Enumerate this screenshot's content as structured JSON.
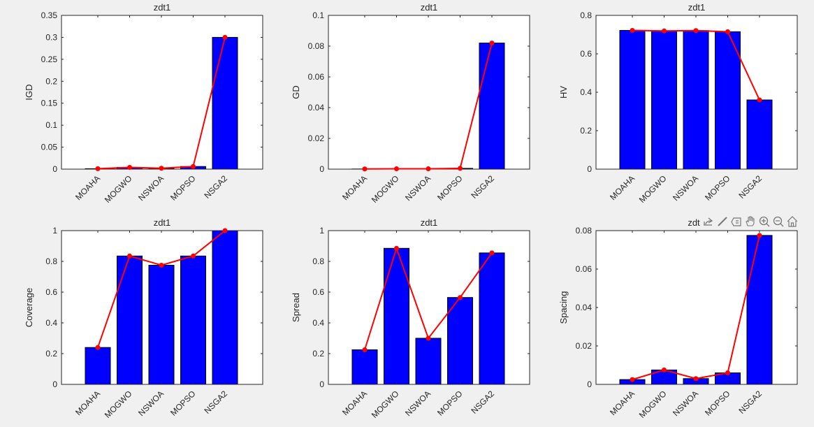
{
  "colors": {
    "bar": "#0000ff",
    "line": "#ff0000",
    "background": "#f0f0f0"
  },
  "toolbar": {
    "icons": [
      "export-icon",
      "brush-icon",
      "data-tips-icon",
      "pan-icon",
      "zoom-in-icon",
      "zoom-out-icon",
      "home-icon"
    ]
  },
  "chart_data": [
    {
      "type": "bar",
      "title": "zdt1",
      "ylabel": "IGD",
      "categories": [
        "MOAHA",
        "MOGWO",
        "NSWOA",
        "MOPSO",
        "NSGA2"
      ],
      "values": [
        0.001,
        0.004,
        0.002,
        0.006,
        0.3
      ],
      "ylim": [
        0,
        0.35
      ],
      "yticks": [
        "0",
        "0.05",
        "0.1",
        "0.15",
        "0.2",
        "0.25",
        "0.3",
        "0.35"
      ],
      "overlay": "line"
    },
    {
      "type": "bar",
      "title": "zdt1",
      "ylabel": "GD",
      "categories": [
        "MOAHA",
        "MOGWO",
        "NSWOA",
        "MOPSO",
        "NSGA2"
      ],
      "values": [
        0.0001,
        0.0002,
        0.0002,
        0.0005,
        0.082
      ],
      "ylim": [
        0,
        0.1
      ],
      "yticks": [
        "0",
        "0.02",
        "0.04",
        "0.06",
        "0.08",
        "0.1"
      ],
      "overlay": "line"
    },
    {
      "type": "bar",
      "title": "zdt1",
      "ylabel": "HV",
      "categories": [
        "MOAHA",
        "MOGWO",
        "NSWOA",
        "MOPSO",
        "NSGA2"
      ],
      "values": [
        0.722,
        0.719,
        0.721,
        0.715,
        0.36
      ],
      "ylim": [
        0,
        0.8
      ],
      "yticks": [
        "0",
        "0.2",
        "0.4",
        "0.6",
        "0.8"
      ],
      "overlay": "line"
    },
    {
      "type": "bar",
      "title": "zdt1",
      "ylabel": "Coverage",
      "categories": [
        "MOAHA",
        "MOGWO",
        "NSWOA",
        "MOPSO",
        "NSGA2"
      ],
      "values": [
        0.24,
        0.835,
        0.775,
        0.835,
        1.0
      ],
      "ylim": [
        0,
        1
      ],
      "yticks": [
        "0",
        "0.2",
        "0.4",
        "0.6",
        "0.8",
        "1"
      ],
      "overlay": "line"
    },
    {
      "type": "bar",
      "title": "zdt1",
      "ylabel": "Spread",
      "categories": [
        "MOAHA",
        "MOGWO",
        "NSWOA",
        "MOPSO",
        "NSGA2"
      ],
      "values": [
        0.225,
        0.885,
        0.3,
        0.565,
        0.855
      ],
      "ylim": [
        0,
        1
      ],
      "yticks": [
        "0",
        "0.2",
        "0.4",
        "0.6",
        "0.8",
        "1"
      ],
      "overlay": "line"
    },
    {
      "type": "bar",
      "title": "zdt1",
      "ylabel": "Spacing",
      "categories": [
        "MOAHA",
        "MOGWO",
        "NSWOA",
        "MOPSO",
        "NSGA2"
      ],
      "values": [
        0.0025,
        0.0075,
        0.003,
        0.006,
        0.0775
      ],
      "ylim": [
        0,
        0.08
      ],
      "yticks": [
        "0",
        "0.02",
        "0.04",
        "0.06",
        "0.08"
      ],
      "overlay": "line"
    }
  ]
}
